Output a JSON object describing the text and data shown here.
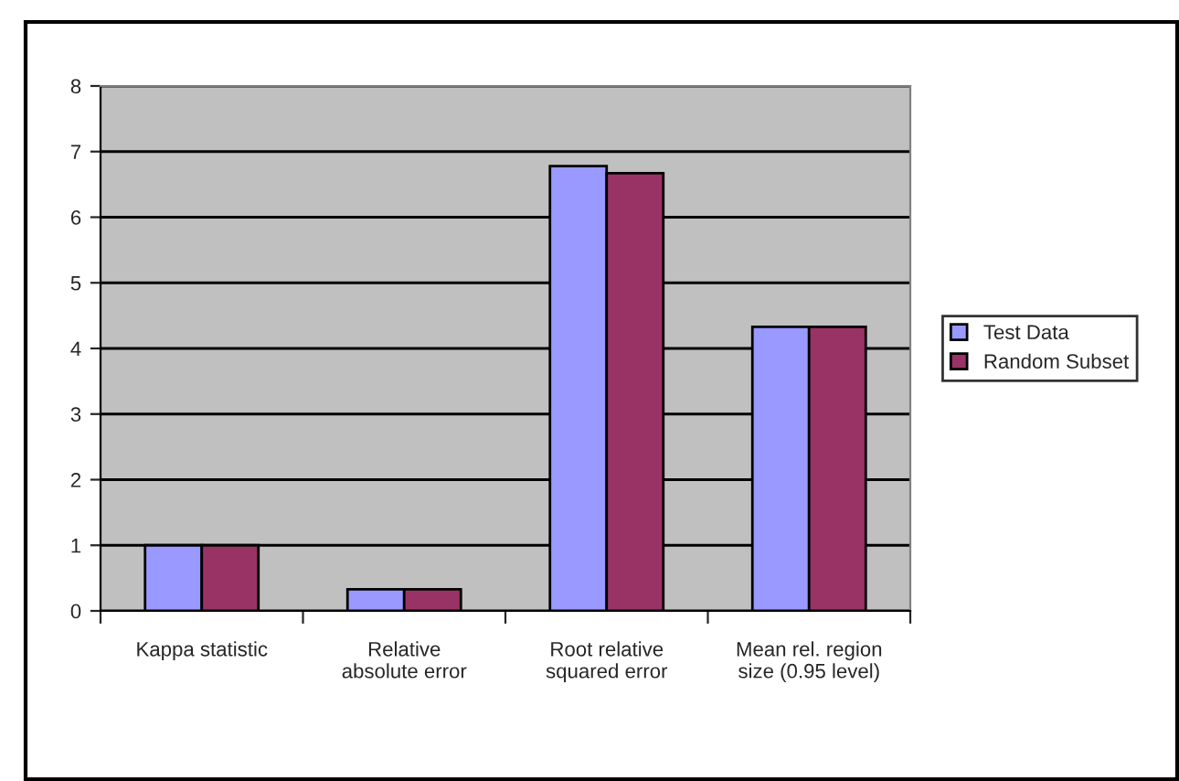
{
  "chart_data": {
    "type": "bar",
    "categories": [
      "Kappa statistic",
      "Relative\nabsolute error",
      "Root relative\nsquared error",
      "Mean rel. region\nsize (0.95 level)"
    ],
    "series": [
      {
        "name": "Test Data",
        "color": "#9999ff",
        "values": [
          1.0,
          0.33,
          6.78,
          4.33
        ]
      },
      {
        "name": "Random Subset",
        "color": "#993366",
        "values": [
          1.0,
          0.33,
          6.67,
          4.33
        ]
      }
    ],
    "ylim": [
      0,
      8
    ],
    "yticks": [
      0,
      1,
      2,
      3,
      4,
      5,
      6,
      7,
      8
    ],
    "grid": "y",
    "legend": "right"
  }
}
